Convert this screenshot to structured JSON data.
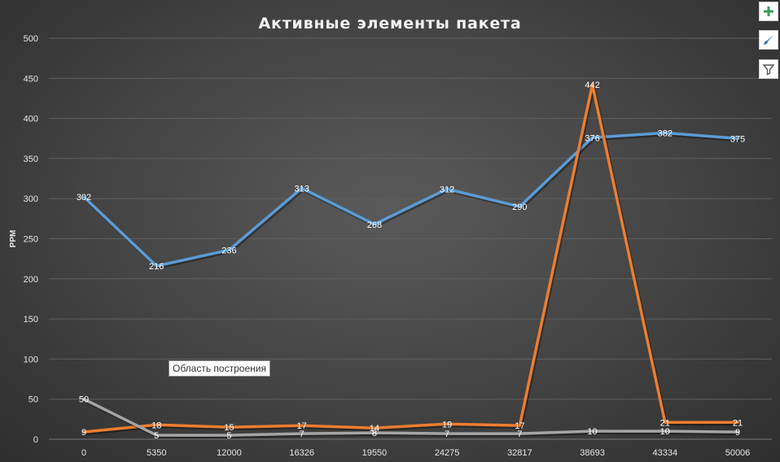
{
  "chart_data": {
    "type": "line",
    "title": "Активные элементы пакета",
    "xlabel": "",
    "ylabel": "PPM",
    "ylim": [
      0,
      500
    ],
    "yticks": [
      0,
      50,
      100,
      150,
      200,
      250,
      300,
      350,
      400,
      450,
      500
    ],
    "categories": [
      "0",
      "5350",
      "12000",
      "16326",
      "19550",
      "24275",
      "32817",
      "38693",
      "43334",
      "50006"
    ],
    "grid": true,
    "legend": "none",
    "series": [
      {
        "color": "#5b9bd5",
        "values": [
          302,
          216,
          236,
          313,
          268,
          312,
          290,
          376,
          382,
          375
        ],
        "labels": [
          "302",
          "216",
          "236",
          "313",
          "268",
          "312",
          "290",
          "376",
          "382",
          "375"
        ]
      },
      {
        "color": "#ed7d31",
        "values": [
          9,
          18,
          15,
          17,
          14,
          19,
          17,
          442,
          21,
          21
        ],
        "labels": [
          "9",
          "18",
          "15",
          "17",
          "14",
          "19",
          "17",
          "442",
          "21",
          "21"
        ]
      },
      {
        "color": "#a5a5a5",
        "values": [
          50,
          5,
          5,
          7,
          8,
          7,
          7,
          10,
          10,
          9
        ],
        "labels": [
          "50",
          "5",
          "5",
          "7",
          "8",
          "7",
          "7",
          "10",
          "10",
          "9"
        ]
      }
    ]
  },
  "tooltip": {
    "text": "Область построения"
  },
  "side_buttons": [
    {
      "icon": "plus-icon",
      "color": "#3a9a5b"
    },
    {
      "icon": "brush-icon",
      "color": "#2e75b6"
    },
    {
      "icon": "filter-icon",
      "color": "#555555"
    }
  ]
}
